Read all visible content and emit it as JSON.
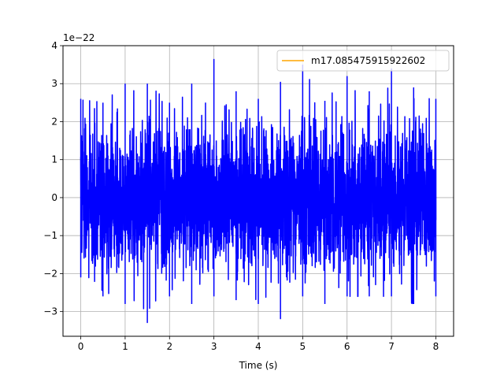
{
  "chart_data": {
    "type": "line",
    "title": "",
    "xlabel": "Time (s)",
    "ylabel": "",
    "y_offset_label": "1e−22",
    "xlim": [
      -0.4,
      8.4
    ],
    "ylim": [
      -3.65,
      4.0
    ],
    "x_ticks": [
      0,
      1,
      2,
      3,
      4,
      5,
      6,
      7,
      8
    ],
    "x_tick_labels": [
      "0",
      "1",
      "2",
      "3",
      "4",
      "5",
      "6",
      "7",
      "8"
    ],
    "y_ticks": [
      -3,
      -2,
      -1,
      0,
      1,
      2,
      3,
      4
    ],
    "y_tick_labels": [
      "−3",
      "−2",
      "−1",
      "0",
      "1",
      "2",
      "3",
      "4"
    ],
    "grid": true,
    "legend_position": "top-right",
    "series": [
      {
        "name": "",
        "color": "#0000ff",
        "kind": "noise",
        "x_range": [
          0,
          8
        ],
        "approx_range": [
          -3.3,
          3.65
        ],
        "envelope": {
          "x": [
            0,
            0.5,
            1.0,
            1.5,
            2.0,
            2.5,
            3.0,
            3.5,
            4.0,
            4.5,
            5.0,
            5.5,
            6.0,
            6.5,
            7.0,
            7.5,
            8.0
          ],
          "upper": [
            2.6,
            2.5,
            3.0,
            3.0,
            2.5,
            3.0,
            3.65,
            2.8,
            2.6,
            3.05,
            3.5,
            2.55,
            3.2,
            2.8,
            3.4,
            2.9,
            2.6
          ],
          "lower": [
            -2.1,
            -2.6,
            -2.8,
            -3.3,
            -2.6,
            -2.8,
            -2.6,
            -2.7,
            -2.8,
            -3.2,
            -2.6,
            -2.8,
            -2.6,
            -2.6,
            -2.6,
            -2.8,
            -2.6
          ]
        }
      },
      {
        "name": "m17.085475915922602",
        "color": "#ffa500",
        "kind": "line",
        "x": [],
        "y": []
      }
    ]
  }
}
